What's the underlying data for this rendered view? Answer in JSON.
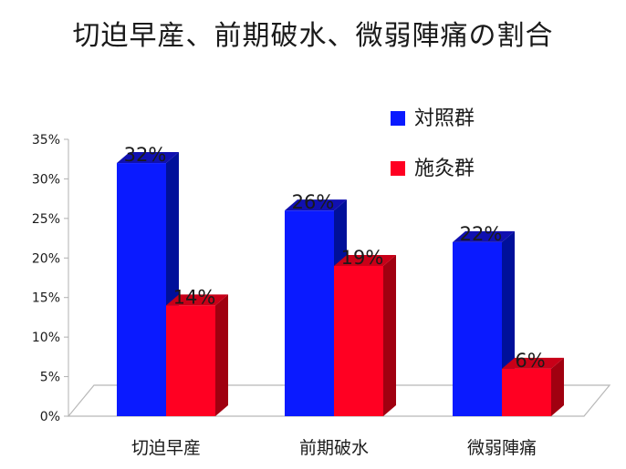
{
  "chart_data": {
    "type": "bar",
    "title": "切迫早産、前期破水、微弱陣痛の割合",
    "categories": [
      "切迫早産",
      "前期破水",
      "微弱陣痛"
    ],
    "series": [
      {
        "name": "対照群",
        "values": [
          32,
          26,
          22
        ],
        "labels": [
          "32%",
          "26%",
          "22%"
        ],
        "color": "#0a1aff",
        "side_color": "#00109a",
        "top_color": "#1010b0"
      },
      {
        "name": "施灸群",
        "values": [
          14,
          19,
          6
        ],
        "labels": [
          "14%",
          "19%",
          "6%"
        ],
        "color": "#ff0022",
        "side_color": "#a00010",
        "top_color": "#c80018"
      }
    ],
    "ylim": [
      0,
      35
    ],
    "yticks": [
      0,
      5,
      10,
      15,
      20,
      25,
      30,
      35
    ],
    "ytick_labels": [
      "0%",
      "5%",
      "10%",
      "15%",
      "20%",
      "25%",
      "30%",
      "35%"
    ],
    "grid": false,
    "legend_position": "top-right",
    "three_d": true
  }
}
